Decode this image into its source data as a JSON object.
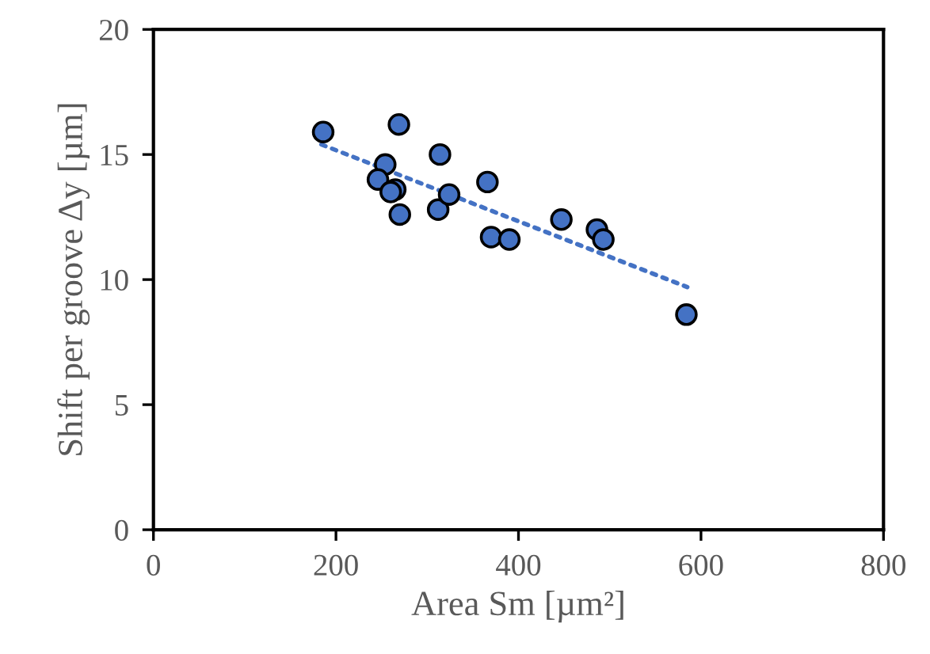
{
  "chart_data": {
    "type": "scatter",
    "xlabel": "Area Sm [µm²]",
    "ylabel": "Shift per groove Δy [µm]",
    "xlim": [
      0,
      800
    ],
    "xticks": [
      0,
      200,
      400,
      600,
      800
    ],
    "ylim": [
      0,
      20
    ],
    "yticks": [
      0,
      5,
      10,
      15,
      20
    ],
    "grid": false,
    "legend": false,
    "series": [
      {
        "color": "#4472c4",
        "marker": "circle",
        "x": [
          186,
          269,
          254,
          246,
          265,
          260,
          270,
          314,
          312,
          324,
          366,
          370,
          390,
          447,
          486,
          493,
          584
        ],
        "values": [
          15.9,
          16.2,
          14.6,
          14.0,
          13.6,
          13.5,
          12.6,
          15.0,
          12.8,
          13.4,
          13.9,
          11.7,
          11.6,
          12.4,
          12.0,
          11.6,
          8.6
        ]
      },
      {
        "type": "line",
        "color": "#4472c4",
        "marker": "none",
        "line_style": "dotted",
        "x": [
          184,
          585
        ],
        "values": [
          15.4,
          9.7
        ]
      }
    ]
  }
}
